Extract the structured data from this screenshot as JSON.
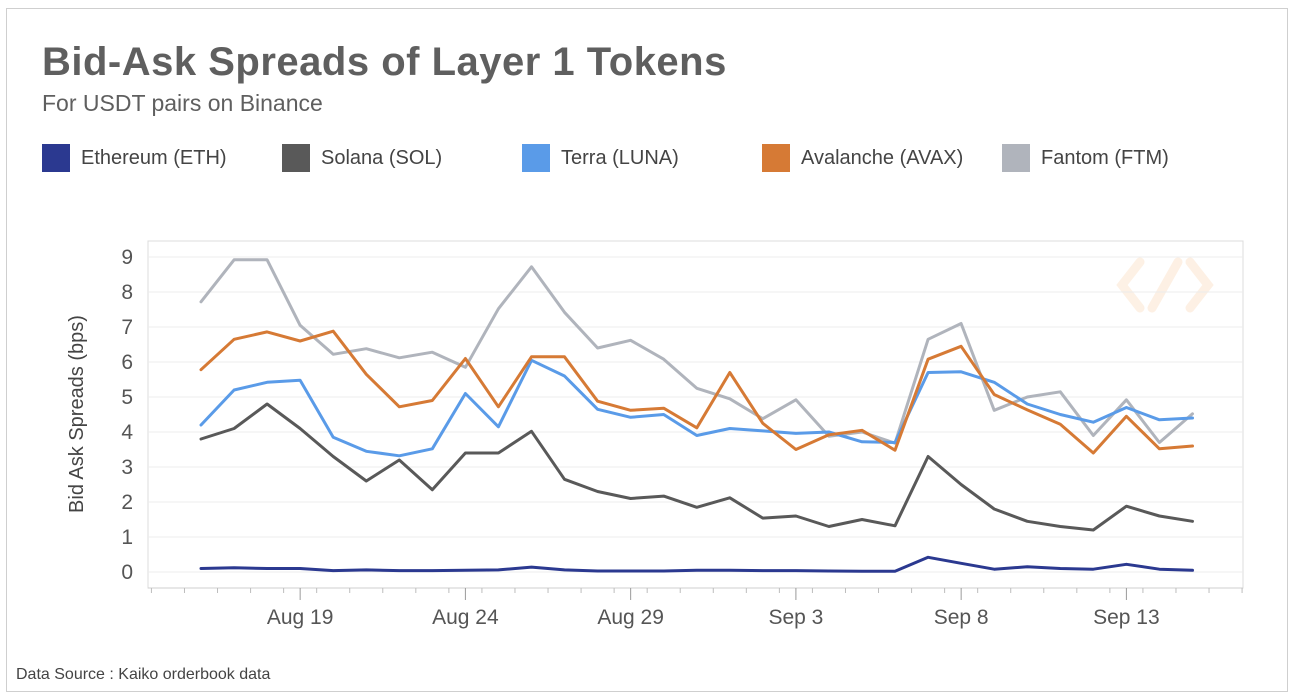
{
  "header": {
    "title": "Bid-Ask Spreads of Layer 1 Tokens",
    "subtitle": "For USDT pairs on Binance"
  },
  "footer": {
    "source": "Data Source : Kaiko orderbook data"
  },
  "chart_data": {
    "type": "line",
    "title": "Bid-Ask Spreads of Layer 1 Tokens",
    "subtitle": "For USDT pairs on Binance",
    "xlabel": "",
    "ylabel": "Bid Ask Spreads (bps)",
    "ylim": [
      0,
      9
    ],
    "yticks": [
      0,
      1,
      2,
      3,
      4,
      5,
      6,
      7,
      8,
      9
    ],
    "grid": true,
    "legend_position": "top",
    "x": [
      "Aug 16",
      "Aug 17",
      "Aug 18",
      "Aug 19",
      "Aug 20",
      "Aug 21",
      "Aug 22",
      "Aug 23",
      "Aug 24",
      "Aug 25",
      "Aug 26",
      "Aug 27",
      "Aug 28",
      "Aug 29",
      "Aug 30",
      "Aug 31",
      "Sep 1",
      "Sep 2",
      "Sep 3",
      "Sep 4",
      "Sep 5",
      "Sep 6",
      "Sep 7",
      "Sep 8",
      "Sep 9",
      "Sep 10",
      "Sep 11",
      "Sep 12",
      "Sep 13",
      "Sep 14",
      "Sep 15"
    ],
    "xtick_labels": [
      "Aug 19",
      "Aug 24",
      "Aug 29",
      "Sep 3",
      "Sep 8",
      "Sep 13"
    ],
    "series": [
      {
        "name": "Ethereum (ETH)",
        "color": "#2b3990",
        "values": [
          0.1,
          0.12,
          0.1,
          0.1,
          0.04,
          0.06,
          0.04,
          0.04,
          0.05,
          0.06,
          0.14,
          0.06,
          0.03,
          0.03,
          0.03,
          0.05,
          0.05,
          0.04,
          0.04,
          0.03,
          0.02,
          0.02,
          0.42,
          0.25,
          0.08,
          0.15,
          0.1,
          0.08,
          0.22,
          0.08,
          0.05
        ]
      },
      {
        "name": "Solana (SOL)",
        "color": "#595959",
        "values": [
          3.8,
          4.1,
          4.8,
          4.1,
          3.3,
          2.6,
          3.2,
          2.35,
          3.4,
          3.4,
          4.02,
          2.65,
          2.3,
          2.1,
          2.17,
          1.85,
          2.12,
          1.54,
          1.6,
          1.3,
          1.5,
          1.32,
          3.3,
          2.5,
          1.8,
          1.45,
          1.3,
          1.2,
          1.88,
          1.6,
          1.45
        ]
      },
      {
        "name": "Terra (LUNA)",
        "color": "#5a9be8",
        "values": [
          4.2,
          5.2,
          5.42,
          5.48,
          3.85,
          3.45,
          3.32,
          3.52,
          5.1,
          4.15,
          6.05,
          5.6,
          4.65,
          4.42,
          4.5,
          3.9,
          4.1,
          4.03,
          3.96,
          4.0,
          3.72,
          3.7,
          5.7,
          5.72,
          5.42,
          4.8,
          4.5,
          4.28,
          4.7,
          4.35,
          4.4
        ]
      },
      {
        "name": "Avalanche (AVAX)",
        "color": "#d67a35",
        "values": [
          5.78,
          6.65,
          6.86,
          6.6,
          6.88,
          5.65,
          4.72,
          4.9,
          6.1,
          4.72,
          6.15,
          6.15,
          4.88,
          4.62,
          4.68,
          4.12,
          5.7,
          4.25,
          3.5,
          3.92,
          4.05,
          3.48,
          6.08,
          6.45,
          5.07,
          4.63,
          4.22,
          3.4,
          4.45,
          3.52,
          3.6
        ]
      },
      {
        "name": "Fantom (FTM)",
        "color": "#b0b4bc",
        "values": [
          7.72,
          8.92,
          8.92,
          7.05,
          6.22,
          6.38,
          6.12,
          6.28,
          5.85,
          7.52,
          8.72,
          7.42,
          6.4,
          6.62,
          6.08,
          5.25,
          4.95,
          4.38,
          4.92,
          3.88,
          4.0,
          3.68,
          6.65,
          7.1,
          4.62,
          5.0,
          5.15,
          3.9,
          4.92,
          3.7,
          4.52
        ]
      }
    ]
  }
}
